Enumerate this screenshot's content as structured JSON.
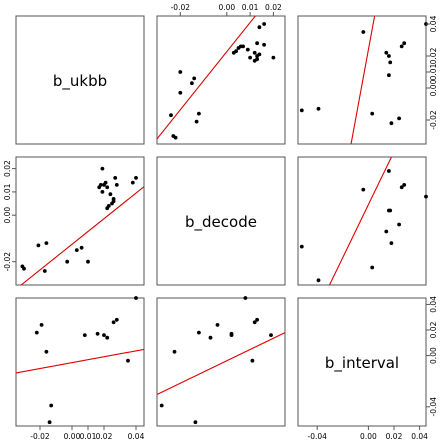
{
  "chart_data": {
    "type": "scatter",
    "layout": "pairs-matrix",
    "variables": [
      "b_ukbb",
      "b_decode",
      "b_interval"
    ],
    "axes": {
      "b_ukbb": {
        "range": [
          -0.035,
          0.045
        ],
        "ticks": [
          -0.02,
          0.0,
          0.01,
          0.02,
          0.04
        ],
        "tick_labels": [
          "-0.02",
          "0.00",
          "0.01",
          "0.02",
          "0.04"
        ]
      },
      "b_decode": {
        "range": [
          -0.03,
          0.025
        ],
        "ticks": [
          -0.02,
          0.0,
          0.01,
          0.02
        ],
        "tick_labels": [
          "-0.02",
          "0.00",
          "0.01",
          "0.02"
        ]
      },
      "b_interval": {
        "range": [
          -0.055,
          0.045
        ],
        "ticks": [
          -0.04,
          0.0,
          0.02,
          0.04
        ],
        "tick_labels": [
          "-0.04",
          "0.00",
          "0.02",
          "0.04"
        ]
      }
    },
    "tick_placement": {
      "top": [
        "b_decode"
      ],
      "right": [
        "b_ukbb",
        "b_interval"
      ],
      "bottom": [
        "b_ukbb",
        "b_interval"
      ],
      "left": [
        "b_decode"
      ]
    },
    "points_full": {
      "b_ukbb": [
        -0.031,
        -0.03,
        -0.021,
        -0.017,
        -0.016,
        -0.003,
        0.003,
        0.006,
        0.01,
        0.017,
        0.018,
        0.019,
        0.019,
        0.02,
        0.021,
        0.022,
        0.022,
        0.023,
        0.024,
        0.025,
        0.026,
        0.026,
        0.027,
        0.028,
        0.038,
        0.04
      ],
      "b_decode": [
        -0.022,
        -0.023,
        -0.013,
        -0.024,
        -0.012,
        -0.02,
        -0.015,
        -0.014,
        -0.02,
        0.012,
        0.013,
        0.02,
        0.01,
        0.013,
        0.014,
        0.012,
        0.003,
        0.004,
        0.009,
        0.005,
        0.006,
        0.007,
        0.016,
        0.013,
        0.014,
        0.016
      ]
    },
    "points_interval": {
      "b_ukbb": [
        -0.022,
        -0.019,
        -0.016,
        -0.014,
        -0.013,
        0.008,
        0.016,
        0.02,
        0.022,
        0.026,
        0.028,
        0.035,
        0.04
      ],
      "b_decode": [
        -0.012,
        -0.004,
        -0.0225,
        -0.0135,
        -0.028,
        0.002,
        0.002,
        0.019,
        -0.007,
        0.012,
        0.013,
        0.011,
        0.008
      ],
      "b_interval": [
        0.018,
        0.024,
        0.003,
        -0.052,
        -0.039,
        0.016,
        0.017,
        0.016,
        0.014,
        0.026,
        0.028,
        -0.004,
        0.045
      ]
    },
    "fit_lines": [
      {
        "panel": "b_decode~b_ukbb",
        "x": "b_ukbb",
        "y": "b_decode",
        "intercept": -0.0125,
        "slope": 0.55
      },
      {
        "panel": "b_interval~b_ukbb",
        "x": "b_ukbb",
        "y": "b_interval",
        "intercept": -0.0055,
        "slope": 0.23
      },
      {
        "panel": "b_interval~b_decode",
        "x": "b_decode",
        "y": "b_interval",
        "intercept": -0.004,
        "slope": 0.88
      }
    ],
    "point_color": "#000000",
    "line_color": "#e00000"
  }
}
